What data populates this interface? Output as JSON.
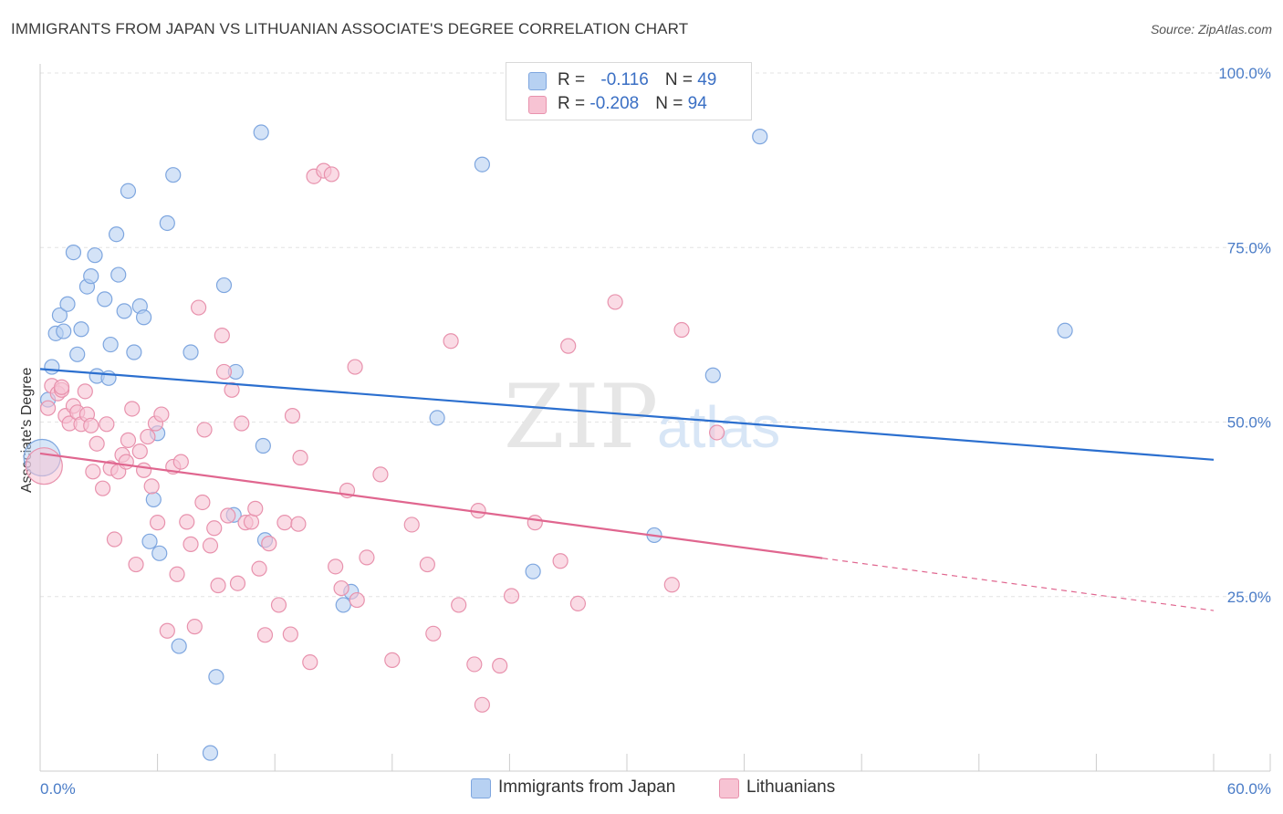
{
  "header": {
    "title": "IMMIGRANTS FROM JAPAN VS LITHUANIAN ASSOCIATE'S DEGREE CORRELATION CHART",
    "source": "Source: ZipAtlas.com"
  },
  "watermark": {
    "zip": "ZIP",
    "atlas": "atlas"
  },
  "legend": {
    "rows": [
      {
        "r_label": "R = ",
        "r_value": "-0.116",
        "n_label": "N = ",
        "n_value": "49",
        "fill": "#b7d1f2",
        "stroke": "#7ea6df"
      },
      {
        "r_label": "R = ",
        "r_value": "-0.208",
        "n_label": "N = ",
        "n_value": "94",
        "fill": "#f7c3d3",
        "stroke": "#e892ad"
      }
    ]
  },
  "bottom_legend": [
    {
      "label": "Immigrants from Japan",
      "fill": "#b7d1f2",
      "stroke": "#7ea6df"
    },
    {
      "label": "Lithuanians",
      "fill": "#f7c3d3",
      "stroke": "#e892ad"
    }
  ],
  "chart_data": {
    "type": "scatter",
    "xlabel": "",
    "ylabel": "Associate's Degree",
    "xlim": [
      0,
      60
    ],
    "ylim": [
      0,
      100
    ],
    "x_tick_labels": [
      "0.0%",
      "60.0%"
    ],
    "y_ticks": [
      25,
      50,
      75,
      100
    ],
    "y_tick_labels": [
      "25.0%",
      "50.0%",
      "75.0%",
      "100.0%"
    ],
    "grid": true,
    "series": [
      {
        "name": "Immigrants from Japan",
        "color": "#7ea6df",
        "fill": "#b7d1f2",
        "line_color": "#2b6fcf",
        "trend": {
          "x": [
            0,
            60
          ],
          "y": [
            57.6,
            44.6
          ]
        },
        "points": [
          [
            0.1,
            44.9
          ],
          [
            0.4,
            53.2
          ],
          [
            0.6,
            57.9
          ],
          [
            0.8,
            62.7
          ],
          [
            1.0,
            65.3
          ],
          [
            1.2,
            63.0
          ],
          [
            1.4,
            66.9
          ],
          [
            1.7,
            74.3
          ],
          [
            1.9,
            59.7
          ],
          [
            2.1,
            63.3
          ],
          [
            2.4,
            69.4
          ],
          [
            2.6,
            70.9
          ],
          [
            2.8,
            73.9
          ],
          [
            2.9,
            56.6
          ],
          [
            3.3,
            67.6
          ],
          [
            3.5,
            56.3
          ],
          [
            3.6,
            61.1
          ],
          [
            3.9,
            76.9
          ],
          [
            4.0,
            71.1
          ],
          [
            4.3,
            65.9
          ],
          [
            4.5,
            83.1
          ],
          [
            4.8,
            60.0
          ],
          [
            5.1,
            66.6
          ],
          [
            5.3,
            65.0
          ],
          [
            5.6,
            32.9
          ],
          [
            5.8,
            38.9
          ],
          [
            6.0,
            48.4
          ],
          [
            6.1,
            31.2
          ],
          [
            6.5,
            78.5
          ],
          [
            6.8,
            85.4
          ],
          [
            7.1,
            17.9
          ],
          [
            7.7,
            60.0
          ],
          [
            8.7,
            2.6
          ],
          [
            9.0,
            13.5
          ],
          [
            9.4,
            69.6
          ],
          [
            9.9,
            36.7
          ],
          [
            10.0,
            57.2
          ],
          [
            11.4,
            46.6
          ],
          [
            11.5,
            33.1
          ],
          [
            11.3,
            91.5
          ],
          [
            15.5,
            23.8
          ],
          [
            15.9,
            25.7
          ],
          [
            20.3,
            50.6
          ],
          [
            22.6,
            86.9
          ],
          [
            25.2,
            28.6
          ],
          [
            31.4,
            33.8
          ],
          [
            34.4,
            56.7
          ],
          [
            36.8,
            90.9
          ],
          [
            52.4,
            63.1
          ]
        ]
      },
      {
        "name": "Lithuanians",
        "color": "#e892ad",
        "fill": "#f7c3d3",
        "line_color": "#e0668f",
        "trend": {
          "x": [
            0,
            40
          ],
          "y": [
            45.5,
            30.5
          ]
        },
        "trend_dashed": {
          "x": [
            40,
            60
          ],
          "y": [
            30.5,
            23.0
          ]
        },
        "points": [
          [
            0.2,
            43.7
          ],
          [
            0.4,
            52.0
          ],
          [
            0.6,
            55.2
          ],
          [
            0.9,
            54.1
          ],
          [
            1.1,
            54.6
          ],
          [
            1.3,
            50.9
          ],
          [
            1.5,
            49.8
          ],
          [
            1.7,
            52.3
          ],
          [
            1.9,
            51.4
          ],
          [
            2.1,
            49.7
          ],
          [
            2.3,
            54.4
          ],
          [
            2.4,
            51.1
          ],
          [
            2.6,
            49.5
          ],
          [
            2.7,
            42.9
          ],
          [
            2.9,
            46.9
          ],
          [
            3.2,
            40.5
          ],
          [
            3.4,
            49.7
          ],
          [
            3.6,
            43.4
          ],
          [
            3.8,
            33.2
          ],
          [
            4.0,
            42.9
          ],
          [
            4.2,
            45.3
          ],
          [
            4.4,
            44.3
          ],
          [
            4.5,
            47.4
          ],
          [
            4.7,
            51.9
          ],
          [
            4.9,
            29.6
          ],
          [
            5.1,
            45.8
          ],
          [
            5.3,
            43.1
          ],
          [
            5.5,
            47.9
          ],
          [
            5.7,
            40.8
          ],
          [
            5.9,
            49.8
          ],
          [
            6.0,
            35.6
          ],
          [
            6.2,
            51.1
          ],
          [
            6.5,
            20.1
          ],
          [
            6.8,
            43.6
          ],
          [
            7.0,
            28.2
          ],
          [
            7.2,
            44.3
          ],
          [
            7.5,
            35.7
          ],
          [
            7.7,
            32.5
          ],
          [
            7.9,
            20.7
          ],
          [
            8.1,
            66.4
          ],
          [
            8.3,
            38.5
          ],
          [
            8.4,
            48.9
          ],
          [
            8.7,
            32.3
          ],
          [
            8.9,
            34.8
          ],
          [
            9.1,
            26.6
          ],
          [
            9.3,
            62.4
          ],
          [
            9.4,
            57.2
          ],
          [
            9.6,
            36.6
          ],
          [
            9.8,
            54.6
          ],
          [
            10.1,
            26.9
          ],
          [
            10.3,
            49.8
          ],
          [
            10.5,
            35.6
          ],
          [
            10.8,
            35.7
          ],
          [
            11.0,
            37.6
          ],
          [
            11.2,
            29.0
          ],
          [
            11.5,
            19.5
          ],
          [
            11.7,
            32.6
          ],
          [
            12.2,
            23.8
          ],
          [
            12.5,
            35.6
          ],
          [
            12.8,
            19.6
          ],
          [
            12.9,
            50.9
          ],
          [
            13.2,
            35.4
          ],
          [
            13.3,
            44.9
          ],
          [
            13.8,
            15.6
          ],
          [
            14.0,
            85.2
          ],
          [
            14.5,
            86.0
          ],
          [
            14.9,
            85.5
          ],
          [
            15.1,
            29.3
          ],
          [
            15.4,
            26.2
          ],
          [
            15.7,
            40.2
          ],
          [
            16.1,
            57.9
          ],
          [
            16.2,
            24.5
          ],
          [
            16.7,
            30.6
          ],
          [
            17.4,
            42.5
          ],
          [
            18.0,
            15.9
          ],
          [
            19.0,
            35.3
          ],
          [
            19.8,
            29.6
          ],
          [
            20.1,
            19.7
          ],
          [
            21.0,
            61.6
          ],
          [
            21.4,
            23.8
          ],
          [
            22.2,
            15.3
          ],
          [
            22.4,
            37.3
          ],
          [
            22.6,
            9.5
          ],
          [
            23.5,
            15.1
          ],
          [
            24.1,
            25.1
          ],
          [
            25.3,
            35.6
          ],
          [
            26.6,
            30.1
          ],
          [
            27.0,
            60.9
          ],
          [
            27.5,
            24.0
          ],
          [
            29.4,
            67.2
          ],
          [
            32.3,
            26.7
          ],
          [
            32.8,
            63.2
          ],
          [
            34.6,
            48.5
          ],
          [
            1.1,
            55.0
          ]
        ]
      }
    ]
  }
}
